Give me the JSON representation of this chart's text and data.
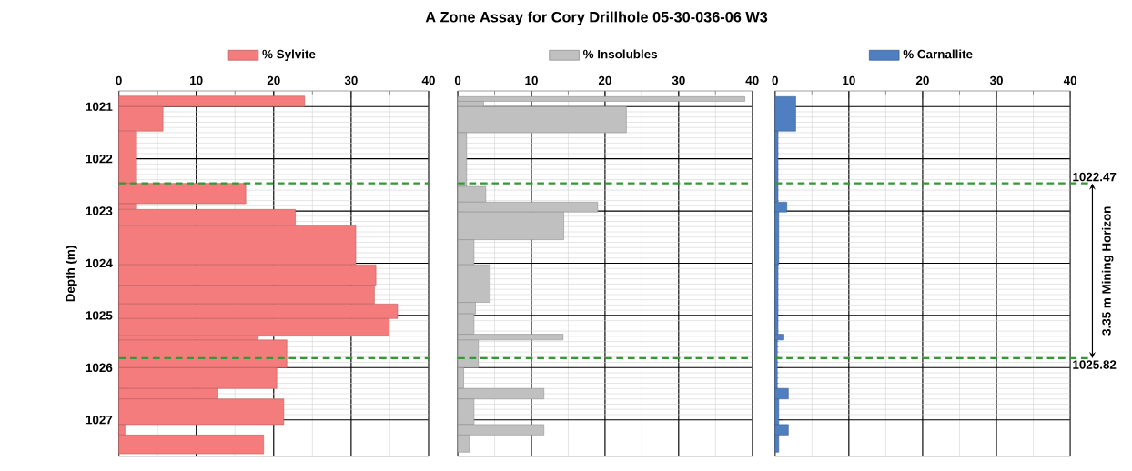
{
  "chart_data": [
    {
      "type": "histogram",
      "orientation": "horizontal",
      "ylabel": "Depth (m)",
      "bins": [
        1020.8,
        1021.0,
        1021.47,
        1022.47,
        1022.86,
        1022.97,
        1023.28,
        1024.03,
        1024.42,
        1024.78,
        1025.06,
        1025.39,
        1025.47,
        1026.0,
        1026.4,
        1026.6,
        1027.09,
        1027.29,
        1027.65
      ],
      "series": [
        {
          "name": "% Sylvite",
          "color": "#f47c7c",
          "values": [
            24,
            5.7,
            2.3,
            16.4,
            2.3,
            22.8,
            30.6,
            33.2,
            33,
            36,
            34.9,
            18,
            21.7,
            20.4,
            12.8,
            21.3,
            0.8,
            18.7
          ]
        }
      ],
      "xlim": [
        0,
        40
      ],
      "xticks": [
        0,
        10,
        20,
        30,
        40
      ],
      "ylim": [
        1027.7,
        1020.7
      ],
      "yticks": [
        1021,
        1022,
        1023,
        1024,
        1025,
        1026,
        1027
      ],
      "grid": true,
      "legend": "top",
      "ref_lines": [
        {
          "axis": "y",
          "value": 1022.47,
          "color": "#339933",
          "line_style": "dashed"
        },
        {
          "axis": "y",
          "value": 1025.82,
          "color": "#339933",
          "line_style": "dashed"
        }
      ]
    },
    {
      "type": "histogram",
      "orientation": "horizontal",
      "title": "A Zone Assay for Cory Drillhole 05-30-036-06 W3",
      "bins": [
        1020.81,
        1020.9,
        1021.0,
        1021.5,
        1022.53,
        1022.83,
        1023.02,
        1023.55,
        1024.03,
        1024.75,
        1024.97,
        1025.36,
        1025.47,
        1026.0,
        1026.4,
        1026.6,
        1027.09,
        1027.29,
        1027.62
      ],
      "series": [
        {
          "name": "% Insolubles",
          "color": "#c0c0c0",
          "values": [
            39,
            3.5,
            22.9,
            1.2,
            3.8,
            19,
            14.4,
            2.2,
            4.4,
            2.4,
            2.2,
            14.3,
            2.8,
            0.8,
            11.7,
            2.2,
            11.7,
            1.6
          ]
        }
      ],
      "xlim": [
        0,
        40
      ],
      "xticks": [
        0,
        10,
        20,
        30,
        40
      ],
      "ylim": [
        1027.7,
        1020.7
      ],
      "yticks": [
        1021,
        1022,
        1023,
        1024,
        1025,
        1026,
        1027
      ],
      "grid": true,
      "legend": "top",
      "tick_labels": "x",
      "ref_lines": [
        {
          "axis": "y",
          "value": 1022.47,
          "color": "#339933",
          "line_style": "dashed"
        },
        {
          "axis": "y",
          "value": 1025.82,
          "color": "#339933",
          "line_style": "dashed"
        }
      ]
    },
    {
      "type": "histogram",
      "orientation": "horizontal",
      "bins": [
        1020.81,
        1021.47,
        1022.83,
        1023.02,
        1024.03,
        1025.36,
        1025.47,
        1026.4,
        1026.6,
        1027.09,
        1027.29,
        1027.62
      ],
      "series": [
        {
          "name": "% Carnallite",
          "color": "#4f7fc0",
          "values": [
            2.8,
            0.4,
            1.6,
            0.5,
            0.4,
            1.2,
            0.3,
            1.8,
            0.5,
            1.8,
            0.5
          ]
        }
      ],
      "xlim": [
        0,
        40
      ],
      "xticks": [
        0,
        10,
        20,
        30,
        40
      ],
      "ylim": [
        1027.7,
        1020.7
      ],
      "yticks": [
        1021,
        1022,
        1023,
        1024,
        1025,
        1026,
        1027
      ],
      "grid": true,
      "legend": "top",
      "tick_labels": "x",
      "ref_lines": [
        {
          "axis": "y",
          "value": 1022.47,
          "label": "1022.47",
          "color": "#339933",
          "line_style": "dashed"
        },
        {
          "axis": "y",
          "value": 1025.82,
          "label": "1025.82",
          "color": "#339933",
          "line_style": "dashed"
        }
      ],
      "annotations": [
        "3.35 m Mining Horizon"
      ]
    }
  ]
}
